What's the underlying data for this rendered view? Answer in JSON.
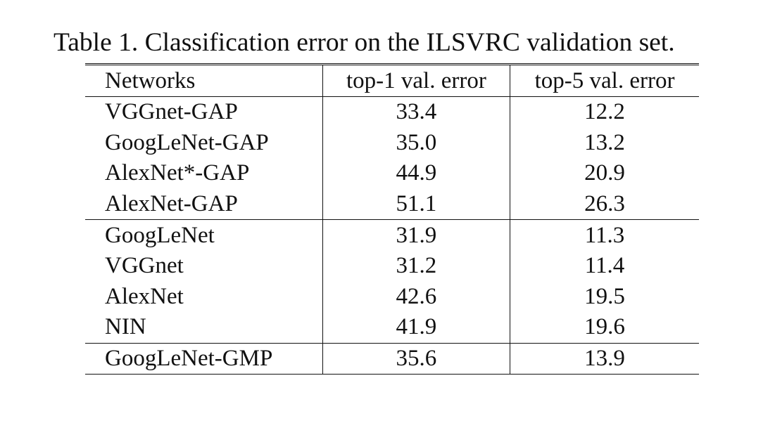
{
  "caption": "Table 1. Classification error on the ILSVRC validation set.",
  "table": {
    "headers": [
      "Networks",
      "top-1 val. error",
      "top-5 val. error"
    ],
    "groups": [
      [
        [
          "VGGnet-GAP",
          "33.4",
          "12.2"
        ],
        [
          "GoogLeNet-GAP",
          "35.0",
          "13.2"
        ],
        [
          "AlexNet*-GAP",
          "44.9",
          "20.9"
        ],
        [
          "AlexNet-GAP",
          "51.1",
          "26.3"
        ]
      ],
      [
        [
          "GoogLeNet",
          "31.9",
          "11.3"
        ],
        [
          "VGGnet",
          "31.2",
          "11.4"
        ],
        [
          "AlexNet",
          "42.6",
          "19.5"
        ],
        [
          "NIN",
          "41.9",
          "19.6"
        ]
      ],
      [
        [
          "GoogLeNet-GMP",
          "35.6",
          "13.9"
        ]
      ]
    ]
  }
}
